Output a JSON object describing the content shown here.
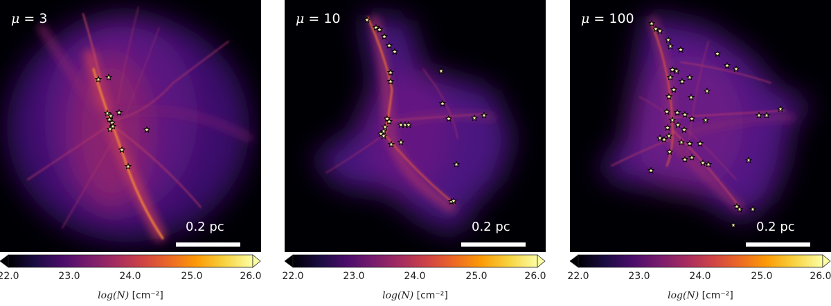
{
  "panels": [
    {
      "mu_symbol": "μ",
      "mu_text": " = 3",
      "scale_bar_label": "0.2 pc",
      "colorbar": {
        "ticks": [
          "22.0",
          "23.0",
          "24.0",
          "25.0",
          "26.0"
        ],
        "label_prefix": "log(N)",
        "label_unit": "[cm⁻²]"
      }
    },
    {
      "mu_symbol": "μ",
      "mu_text": " = 10",
      "scale_bar_label": "0.2 pc",
      "colorbar": {
        "ticks": [
          "22.0",
          "23.0",
          "24.0",
          "25.0",
          "26.0"
        ],
        "label_prefix": "log(N)",
        "label_unit": "[cm⁻²]"
      }
    },
    {
      "mu_symbol": "μ",
      "mu_text": " = 100",
      "scale_bar_label": "0.2 pc",
      "colorbar": {
        "ticks": [
          "22.0",
          "23.0",
          "24.0",
          "25.0",
          "26.0"
        ],
        "label_prefix": "log(N)",
        "label_unit": "[cm⁻²]"
      }
    }
  ],
  "colormap": {
    "name": "inferno",
    "min": 22.0,
    "max": 26.0,
    "colors": [
      "#000004",
      "#1b0c41",
      "#4a0c6b",
      "#781c6d",
      "#a52c60",
      "#cf4446",
      "#ed6925",
      "#fb9b06",
      "#f7d13d",
      "#fcffa4"
    ]
  },
  "background_color": "#000004",
  "star_color": "#fff7b0"
}
